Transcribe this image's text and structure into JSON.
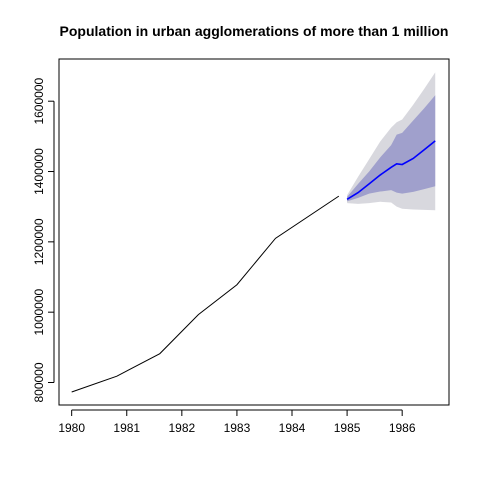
{
  "chart_data": {
    "type": "line",
    "title": "Population in urban agglomerations of more than 1 million",
    "xlabel": "",
    "ylabel": "",
    "xlim": [
      1979.77,
      1986.85
    ],
    "ylim": [
      736000,
      1720000
    ],
    "x_ticks": [
      "1980",
      "1981",
      "1982",
      "1983",
      "1984",
      "1985",
      "1986"
    ],
    "y_ticks": [
      "800000",
      "1000000",
      "1200000",
      "1400000",
      "1600000"
    ],
    "grid": false,
    "legend": "none",
    "colors": {
      "history": "#000000",
      "forecast": "#0000ff",
      "band80": "#a0a0cc",
      "band95": "#d8d8de"
    },
    "series": [
      {
        "role": "history",
        "x": [
          1980.0,
          1980.82,
          1981.6,
          1982.3,
          1983.0,
          1983.7,
          1984.85
        ],
        "y": [
          773000,
          818000,
          882000,
          993000,
          1078000,
          1210000,
          1330000
        ]
      },
      {
        "role": "forecast",
        "x": [
          1985.0,
          1985.2,
          1985.4,
          1985.6,
          1985.8,
          1985.9,
          1986.0,
          1986.2,
          1986.4,
          1986.6
        ],
        "y": [
          1321000,
          1340000,
          1365000,
          1390000,
          1412000,
          1422000,
          1420000,
          1437000,
          1462000,
          1487000
        ],
        "lo80": [
          1315000,
          1325000,
          1337000,
          1343000,
          1347000,
          1340000,
          1337000,
          1342000,
          1350000,
          1358000
        ],
        "hi80": [
          1328000,
          1365000,
          1400000,
          1440000,
          1475000,
          1505000,
          1510000,
          1545000,
          1580000,
          1617000
        ],
        "lo95": [
          1310000,
          1308000,
          1310000,
          1314000,
          1312000,
          1300000,
          1294000,
          1292000,
          1291000,
          1290000
        ],
        "hi95": [
          1333000,
          1385000,
          1435000,
          1485000,
          1525000,
          1540000,
          1548000,
          1590000,
          1635000,
          1682000
        ]
      }
    ]
  }
}
